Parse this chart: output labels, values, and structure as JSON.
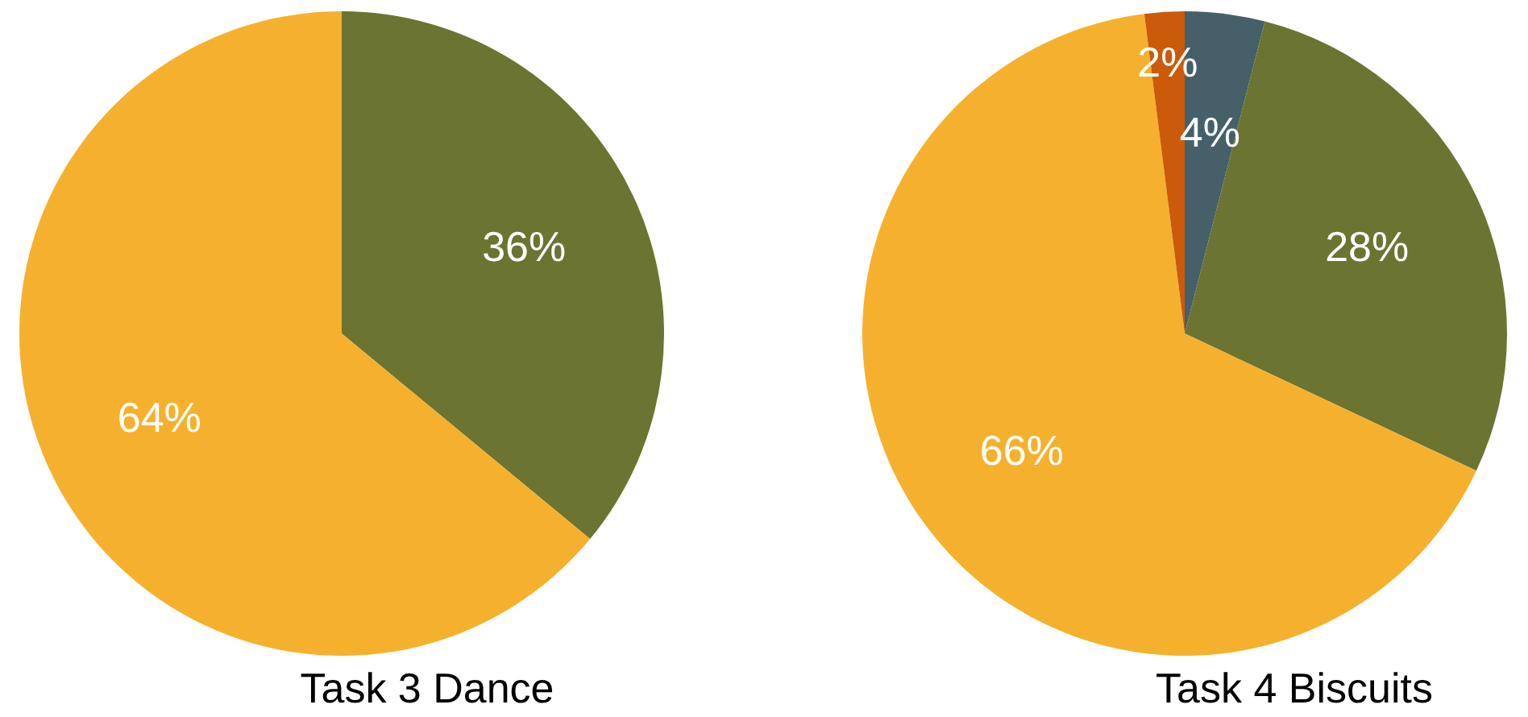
{
  "chart_data": [
    {
      "type": "pie",
      "title": "Task 3 Dance",
      "categories": [
        null,
        null
      ],
      "values": [
        36,
        64
      ],
      "colors": [
        "#6b7431",
        "#f5b12e"
      ],
      "value_labels": [
        "36%",
        "64%"
      ]
    },
    {
      "type": "pie",
      "title": "Task 4 Biscuits",
      "categories": [
        null,
        null,
        null,
        null
      ],
      "values": [
        4,
        28,
        66,
        2
      ],
      "colors": [
        "#456068",
        "#6b7431",
        "#f5b12e",
        "#cc5a0b"
      ],
      "value_labels": [
        "4%",
        "28%",
        "66%",
        "2%"
      ]
    }
  ]
}
